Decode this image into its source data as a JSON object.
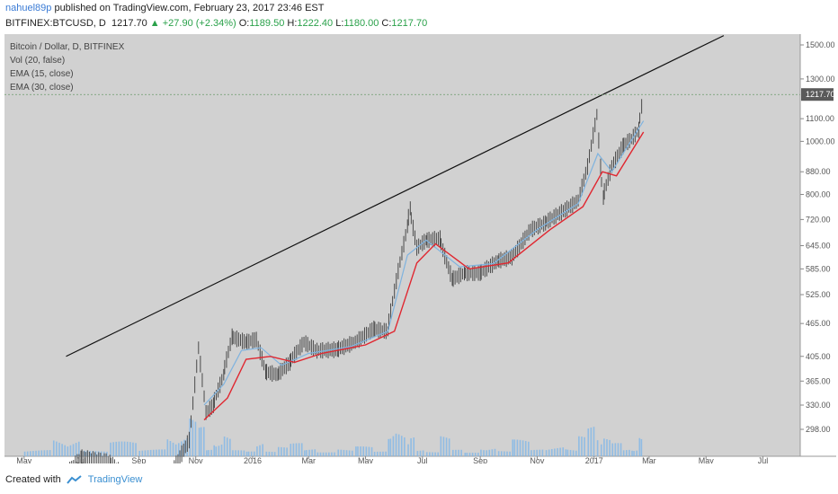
{
  "header": {
    "author": "nahuel89p",
    "published_text": " published on TradingView.com, February 23, 2017 23:46 EST",
    "symbol": "BITFINEX:BTCUSD, D",
    "last": "1217.70",
    "change": "▲ +27.90 (+2.34%)",
    "o_label": "O:",
    "o": "1189.50",
    "h_label": "H:",
    "h": "1222.40",
    "l_label": "L:",
    "l": "1180.00",
    "c_label": "C:",
    "c": "1217.70"
  },
  "legend": {
    "title": "Bitcoin / Dollar, D, BITFINEX",
    "vol": "Vol (20, false)",
    "ema15": "EMA (15, close)",
    "ema30": "EMA (30, close)"
  },
  "footer": {
    "created_with": "Created with",
    "brand": "TradingView"
  },
  "colors": {
    "background": "#d1d1d1",
    "candle": "#4a4a4a",
    "ema15": "#7fb3df",
    "ema30": "#e0262f",
    "volume": "#7fb7e8",
    "trendline": "#111111",
    "price_tag": "#5a5a5a",
    "accent_green": "#2aa14a"
  },
  "chart_data": {
    "type": "line",
    "scale": "log",
    "x_tick_labels": [
      "May",
      "Jul",
      "Sep",
      "Nov",
      "2016",
      "Mar",
      "May",
      "Jul",
      "Sep",
      "Nov",
      "2017",
      "Mar",
      "May",
      "Jul"
    ],
    "y_tick_labels": [
      "1500.00",
      "1300.00",
      "1100.00",
      "1000.00",
      "880.00",
      "800.00",
      "720.00",
      "645.00",
      "585.00",
      "525.00",
      "465.00",
      "405.00",
      "365.00",
      "330.00",
      "298.00"
    ],
    "current_price_label": "1217.70",
    "price_series": [
      {
        "date": "2015-05-01",
        "value": 238
      },
      {
        "date": "2015-06-01",
        "value": 232
      },
      {
        "date": "2015-07-01",
        "value": 265
      },
      {
        "date": "2015-08-01",
        "value": 260
      },
      {
        "date": "2015-09-01",
        "value": 233
      },
      {
        "date": "2015-10-01",
        "value": 240
      },
      {
        "date": "2015-10-25",
        "value": 285
      },
      {
        "date": "2015-11-04",
        "value": 420
      },
      {
        "date": "2015-11-12",
        "value": 320
      },
      {
        "date": "2015-11-20",
        "value": 330
      },
      {
        "date": "2015-12-01",
        "value": 375
      },
      {
        "date": "2015-12-10",
        "value": 440
      },
      {
        "date": "2015-12-25",
        "value": 430
      },
      {
        "date": "2016-01-05",
        "value": 435
      },
      {
        "date": "2016-01-15",
        "value": 380
      },
      {
        "date": "2016-01-28",
        "value": 375
      },
      {
        "date": "2016-02-10",
        "value": 395
      },
      {
        "date": "2016-02-25",
        "value": 430
      },
      {
        "date": "2016-03-10",
        "value": 415
      },
      {
        "date": "2016-04-01",
        "value": 417
      },
      {
        "date": "2016-04-20",
        "value": 430
      },
      {
        "date": "2016-05-10",
        "value": 455
      },
      {
        "date": "2016-05-25",
        "value": 450
      },
      {
        "date": "2016-06-05",
        "value": 580
      },
      {
        "date": "2016-06-15",
        "value": 700
      },
      {
        "date": "2016-06-18",
        "value": 755
      },
      {
        "date": "2016-06-25",
        "value": 640
      },
      {
        "date": "2016-07-05",
        "value": 660
      },
      {
        "date": "2016-07-20",
        "value": 665
      },
      {
        "date": "2016-08-02",
        "value": 560
      },
      {
        "date": "2016-08-15",
        "value": 575
      },
      {
        "date": "2016-09-01",
        "value": 575
      },
      {
        "date": "2016-09-20",
        "value": 605
      },
      {
        "date": "2016-10-05",
        "value": 615
      },
      {
        "date": "2016-10-25",
        "value": 690
      },
      {
        "date": "2016-11-10",
        "value": 710
      },
      {
        "date": "2016-12-01",
        "value": 750
      },
      {
        "date": "2016-12-15",
        "value": 780
      },
      {
        "date": "2016-12-25",
        "value": 900
      },
      {
        "date": "2017-01-04",
        "value": 1120
      },
      {
        "date": "2017-01-08",
        "value": 900
      },
      {
        "date": "2017-01-11",
        "value": 790
      },
      {
        "date": "2017-01-20",
        "value": 900
      },
      {
        "date": "2017-02-01",
        "value": 980
      },
      {
        "date": "2017-02-10",
        "value": 1010
      },
      {
        "date": "2017-02-18",
        "value": 1050
      },
      {
        "date": "2017-02-23",
        "value": 1217.7
      }
    ],
    "ema15_series": [
      {
        "date": "2015-11-10",
        "value": 330
      },
      {
        "date": "2015-12-01",
        "value": 360
      },
      {
        "date": "2015-12-20",
        "value": 415
      },
      {
        "date": "2016-01-10",
        "value": 420
      },
      {
        "date": "2016-02-01",
        "value": 390
      },
      {
        "date": "2016-03-01",
        "value": 410
      },
      {
        "date": "2016-04-15",
        "value": 422
      },
      {
        "date": "2016-05-25",
        "value": 450
      },
      {
        "date": "2016-06-15",
        "value": 620
      },
      {
        "date": "2016-07-05",
        "value": 660
      },
      {
        "date": "2016-08-10",
        "value": 590
      },
      {
        "date": "2016-09-15",
        "value": 598
      },
      {
        "date": "2016-11-01",
        "value": 690
      },
      {
        "date": "2016-12-15",
        "value": 770
      },
      {
        "date": "2017-01-05",
        "value": 950
      },
      {
        "date": "2017-01-20",
        "value": 880
      },
      {
        "date": "2017-02-23",
        "value": 1090
      }
    ],
    "ema30_series": [
      {
        "date": "2015-11-10",
        "value": 310
      },
      {
        "date": "2015-12-05",
        "value": 340
      },
      {
        "date": "2015-12-25",
        "value": 400
      },
      {
        "date": "2016-01-20",
        "value": 405
      },
      {
        "date": "2016-02-15",
        "value": 395
      },
      {
        "date": "2016-03-15",
        "value": 410
      },
      {
        "date": "2016-05-01",
        "value": 425
      },
      {
        "date": "2016-06-01",
        "value": 450
      },
      {
        "date": "2016-06-25",
        "value": 600
      },
      {
        "date": "2016-07-15",
        "value": 650
      },
      {
        "date": "2016-08-20",
        "value": 585
      },
      {
        "date": "2016-10-01",
        "value": 600
      },
      {
        "date": "2016-11-15",
        "value": 690
      },
      {
        "date": "2016-12-20",
        "value": 760
      },
      {
        "date": "2017-01-10",
        "value": 880
      },
      {
        "date": "2017-01-25",
        "value": 865
      },
      {
        "date": "2017-02-23",
        "value": 1040
      }
    ],
    "trendline": [
      {
        "date": "2015-06-15",
        "value": 405
      },
      {
        "date": "2017-05-20",
        "value": 1560
      }
    ],
    "volume_shown": true,
    "grid": false,
    "legend_placement": "top-left"
  }
}
